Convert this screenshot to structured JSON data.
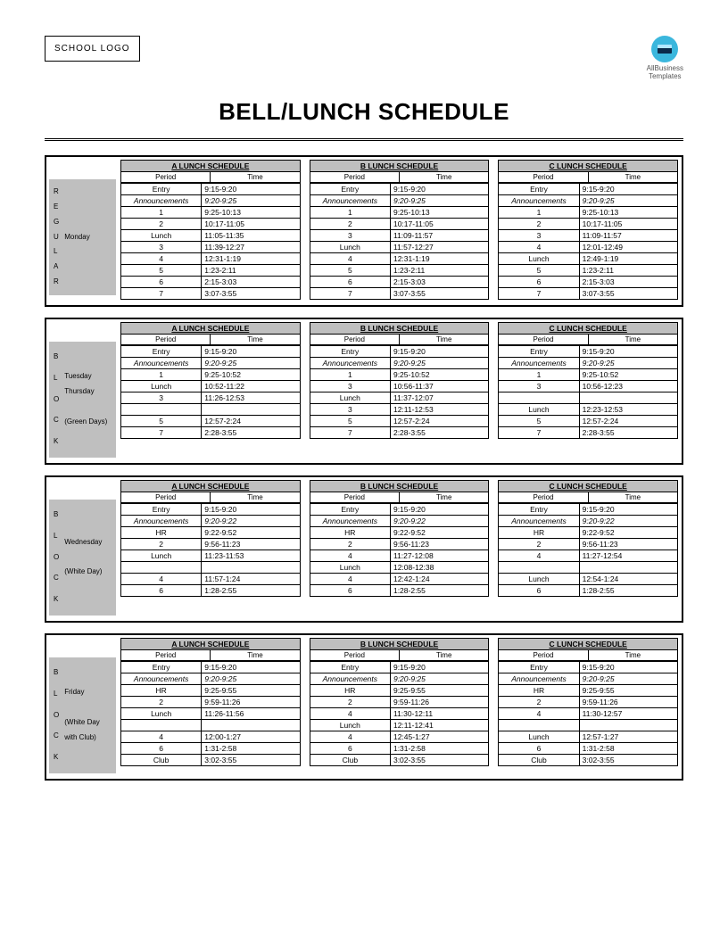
{
  "logo_text": "SCHOOL LOGO",
  "brand": "AllBusiness\nTemplates",
  "title": "BELL/LUNCH SCHEDULE",
  "col_headers": {
    "period": "Period",
    "time": "Time"
  },
  "sched_titles": {
    "a": "A LUNCH SCHEDULE",
    "b": "B LUNCH SCHEDULE",
    "c": "C LUNCH SCHEDULE"
  },
  "day_label_vertical": {
    "regular": "R E G U L A R",
    "block": "B L O C K"
  },
  "sections": [
    {
      "day_type": "REGULAR",
      "day_lines": [
        "Monday"
      ],
      "a": [
        {
          "p": "Entry",
          "t": "9:15-9:20"
        },
        {
          "p": "Announcements",
          "t": "9:20-9:25",
          "it": true
        },
        {
          "p": "1",
          "t": "9:25-10:13"
        },
        {
          "p": "2",
          "t": "10:17-11:05"
        },
        {
          "p": "Lunch",
          "t": "11:05-11:35"
        },
        {
          "p": "3",
          "t": "11:39-12:27"
        },
        {
          "p": "4",
          "t": "12:31-1:19"
        },
        {
          "p": "5",
          "t": "1:23-2:11"
        },
        {
          "p": "6",
          "t": "2:15-3:03"
        },
        {
          "p": "7",
          "t": "3:07-3:55"
        }
      ],
      "b": [
        {
          "p": "Entry",
          "t": "9:15-9:20"
        },
        {
          "p": "Announcements",
          "t": "9:20-9:25",
          "it": true
        },
        {
          "p": "1",
          "t": "9:25-10:13"
        },
        {
          "p": "2",
          "t": "10:17-11:05"
        },
        {
          "p": "3",
          "t": "11:09-11:57"
        },
        {
          "p": "Lunch",
          "t": "11:57-12:27"
        },
        {
          "p": "4",
          "t": "12:31-1:19"
        },
        {
          "p": "5",
          "t": "1:23-2:11"
        },
        {
          "p": "6",
          "t": "2:15-3:03"
        },
        {
          "p": "7",
          "t": "3:07-3:55"
        }
      ],
      "c": [
        {
          "p": "Entry",
          "t": "9:15-9:20"
        },
        {
          "p": "Announcements",
          "t": "9:20-9:25",
          "it": true
        },
        {
          "p": "1",
          "t": "9:25-10:13"
        },
        {
          "p": "2",
          "t": "10:17-11:05"
        },
        {
          "p": "3",
          "t": "11:09-11:57"
        },
        {
          "p": "4",
          "t": "12:01-12:49"
        },
        {
          "p": "Lunch",
          "t": "12:49-1:19"
        },
        {
          "p": "5",
          "t": "1:23-2:11"
        },
        {
          "p": "6",
          "t": "2:15-3:03"
        },
        {
          "p": "7",
          "t": "3:07-3:55"
        }
      ]
    },
    {
      "day_type": "BLOCK",
      "day_lines": [
        "Tuesday",
        "Thursday",
        "",
        "(Green Days)"
      ],
      "a": [
        {
          "p": "Entry",
          "t": "9:15-9:20"
        },
        {
          "p": "Announcements",
          "t": "9:20-9:25",
          "it": true
        },
        {
          "p": "1",
          "t": "9:25-10:52"
        },
        {
          "p": "Lunch",
          "t": "10:52-11:22"
        },
        {
          "p": "3",
          "t": "11:26-12:53"
        },
        {
          "p": "",
          "t": ""
        },
        {
          "p": "5",
          "t": "12:57-2:24"
        },
        {
          "p": "7",
          "t": "2:28-3:55"
        }
      ],
      "b": [
        {
          "p": "Entry",
          "t": "9:15-9:20"
        },
        {
          "p": "Announcements",
          "t": "9:20-9:25",
          "it": true
        },
        {
          "p": "1",
          "t": "9:25-10:52"
        },
        {
          "p": "3",
          "t": "10:56-11:37"
        },
        {
          "p": "Lunch",
          "t": "11:37-12:07"
        },
        {
          "p": "3",
          "t": "12:11-12:53"
        },
        {
          "p": "5",
          "t": "12:57-2:24"
        },
        {
          "p": "7",
          "t": "2:28-3:55"
        }
      ],
      "c": [
        {
          "p": "Entry",
          "t": "9:15-9:20"
        },
        {
          "p": "Announcements",
          "t": "9:20-9:25",
          "it": true
        },
        {
          "p": "1",
          "t": "9:25-10:52"
        },
        {
          "p": "3",
          "t": "10:56-12:23"
        },
        {
          "p": "",
          "t": ""
        },
        {
          "p": "Lunch",
          "t": "12:23-12:53"
        },
        {
          "p": "5",
          "t": "12:57-2:24"
        },
        {
          "p": "7",
          "t": "2:28-3:55"
        }
      ]
    },
    {
      "day_type": "BLOCK",
      "day_lines": [
        "Wednesday",
        "",
        "(White Day)"
      ],
      "a": [
        {
          "p": "Entry",
          "t": "9:15-9:20"
        },
        {
          "p": "Announcements",
          "t": "9:20-9:22",
          "it": true
        },
        {
          "p": "HR",
          "t": "9:22-9:52"
        },
        {
          "p": "2",
          "t": "9:56-11:23"
        },
        {
          "p": "Lunch",
          "t": "11:23-11:53"
        },
        {
          "p": "",
          "t": ""
        },
        {
          "p": "4",
          "t": "11:57-1:24"
        },
        {
          "p": "6",
          "t": "1:28-2:55"
        }
      ],
      "b": [
        {
          "p": "Entry",
          "t": "9:15-9:20"
        },
        {
          "p": "Announcements",
          "t": "9:20-9:22",
          "it": true
        },
        {
          "p": "HR",
          "t": "9:22-9:52"
        },
        {
          "p": "2",
          "t": "9:56-11:23"
        },
        {
          "p": "4",
          "t": "11:27-12:08"
        },
        {
          "p": "Lunch",
          "t": "12:08-12:38"
        },
        {
          "p": "4",
          "t": "12:42-1:24"
        },
        {
          "p": "6",
          "t": "1:28-2:55"
        }
      ],
      "c": [
        {
          "p": "Entry",
          "t": "9:15-9:20"
        },
        {
          "p": "Announcements",
          "t": "9:20-9:22",
          "it": true
        },
        {
          "p": "HR",
          "t": "9:22-9:52"
        },
        {
          "p": "2",
          "t": "9:56-11:23"
        },
        {
          "p": "4",
          "t": "11:27-12:54"
        },
        {
          "p": "",
          "t": ""
        },
        {
          "p": "Lunch",
          "t": "12:54-1:24"
        },
        {
          "p": "6",
          "t": "1:28-2:55"
        }
      ]
    },
    {
      "day_type": "BLOCK",
      "day_lines": [
        "Friday",
        "",
        "(White Day",
        " with Club)"
      ],
      "a": [
        {
          "p": "Entry",
          "t": "9:15-9:20"
        },
        {
          "p": "Announcements",
          "t": "9:20-9:25",
          "it": true
        },
        {
          "p": "HR",
          "t": "9:25-9:55"
        },
        {
          "p": "2",
          "t": "9:59-11:26"
        },
        {
          "p": "Lunch",
          "t": "11:26-11:56"
        },
        {
          "p": "",
          "t": ""
        },
        {
          "p": "4",
          "t": "12:00-1:27"
        },
        {
          "p": "6",
          "t": "1:31-2:58"
        },
        {
          "p": "Club",
          "t": "3:02-3:55"
        }
      ],
      "b": [
        {
          "p": "Entry",
          "t": "9:15-9:20"
        },
        {
          "p": "Announcements",
          "t": "9:20-9:25",
          "it": true
        },
        {
          "p": "HR",
          "t": "9:25-9:55"
        },
        {
          "p": "2",
          "t": "9:59-11:26"
        },
        {
          "p": "4",
          "t": "11:30-12:11"
        },
        {
          "p": "Lunch",
          "t": "12:11-12:41"
        },
        {
          "p": "4",
          "t": "12:45-1:27"
        },
        {
          "p": "6",
          "t": "1:31-2:58"
        },
        {
          "p": "Club",
          "t": "3:02-3:55"
        }
      ],
      "c": [
        {
          "p": "Entry",
          "t": "9:15-9:20"
        },
        {
          "p": "Announcements",
          "t": "9:20-9:25",
          "it": true
        },
        {
          "p": "HR",
          "t": "9:25-9:55"
        },
        {
          "p": "2",
          "t": "9:59-11:26"
        },
        {
          "p": "4",
          "t": "11:30-12:57"
        },
        {
          "p": "",
          "t": ""
        },
        {
          "p": "Lunch",
          "t": "12:57-1:27"
        },
        {
          "p": "6",
          "t": "1:31-2:58"
        },
        {
          "p": "Club",
          "t": "3:02-3:55"
        }
      ]
    }
  ]
}
